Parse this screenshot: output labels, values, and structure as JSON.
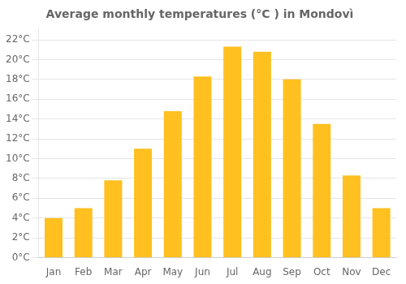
{
  "chart_data": {
    "type": "bar",
    "title": "Average monthly temperatures (°C ) in Mondovì",
    "categories": [
      "Jan",
      "Feb",
      "Mar",
      "Apr",
      "May",
      "Jun",
      "Jul",
      "Aug",
      "Sep",
      "Oct",
      "Nov",
      "Dec"
    ],
    "values": [
      4.0,
      5.0,
      7.8,
      11.0,
      14.8,
      18.3,
      21.3,
      20.8,
      18.0,
      13.5,
      8.3,
      5.0
    ],
    "color": "#FFC020",
    "ylim": [
      0,
      23
    ],
    "yticks": [
      {
        "value": 0,
        "label": "0°C"
      },
      {
        "value": 2,
        "label": "2°C"
      },
      {
        "value": 4,
        "label": "4°C"
      },
      {
        "value": 6,
        "label": "6°C"
      },
      {
        "value": 8,
        "label": "8°C"
      },
      {
        "value": 10,
        "label": "10°C"
      },
      {
        "value": 12,
        "label": "12°C"
      },
      {
        "value": 14,
        "label": "14°C"
      },
      {
        "value": 16,
        "label": "16°C"
      },
      {
        "value": 18,
        "label": "18°C"
      },
      {
        "value": 20,
        "label": "20°C"
      },
      {
        "value": 22,
        "label": "22°C"
      }
    ],
    "grid": true
  }
}
